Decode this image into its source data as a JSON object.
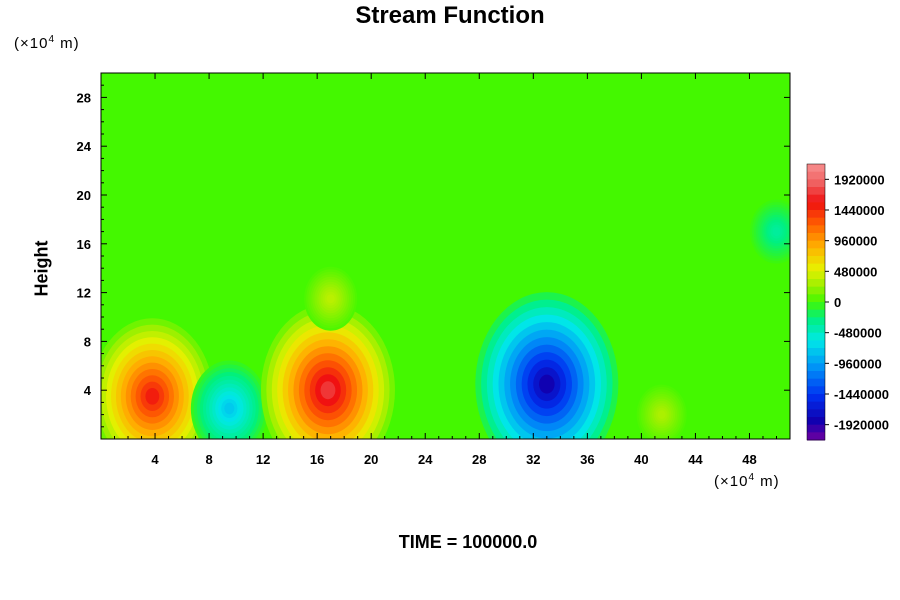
{
  "chart_data": {
    "type": "heatmap",
    "title": "Stream Function",
    "ylabel": "Height",
    "x_unit_prefix": "(×10",
    "x_unit_exp": "4",
    "x_unit_suffix": " m)",
    "y_unit_prefix": "(×10",
    "y_unit_exp": "4",
    "y_unit_suffix": " m)",
    "footer": "TIME = 100000.0",
    "xlim": [
      0,
      51
    ],
    "ylim": [
      0,
      30
    ],
    "x_ticks": [
      4,
      8,
      12,
      16,
      20,
      24,
      28,
      32,
      36,
      40,
      44,
      48
    ],
    "y_ticks": [
      4,
      8,
      12,
      16,
      20,
      24,
      28
    ],
    "colorbar": {
      "range": [
        -2160000,
        2160000
      ],
      "tick_labels": [
        "1920000",
        "1440000",
        "960000",
        "480000",
        "0",
        "-480000",
        "-960000",
        "-1440000",
        "-1920000"
      ],
      "tick_values": [
        1920000,
        1440000,
        960000,
        480000,
        0,
        -480000,
        -960000,
        -1440000,
        -1920000
      ]
    },
    "features": [
      {
        "x": 3.8,
        "y": 3.5,
        "value": 1500000
      },
      {
        "x": 9.5,
        "y": 2.5,
        "value": -750000
      },
      {
        "x": 16.8,
        "y": 4.0,
        "value": 1700000
      },
      {
        "x": 33.0,
        "y": 4.5,
        "value": -1850000
      },
      {
        "x": 41.5,
        "y": 2.0,
        "value": 300000
      },
      {
        "x": 17.0,
        "y": 11.5,
        "value": 350000
      },
      {
        "x": 50.0,
        "y": 17.0,
        "value": -350000
      }
    ]
  }
}
